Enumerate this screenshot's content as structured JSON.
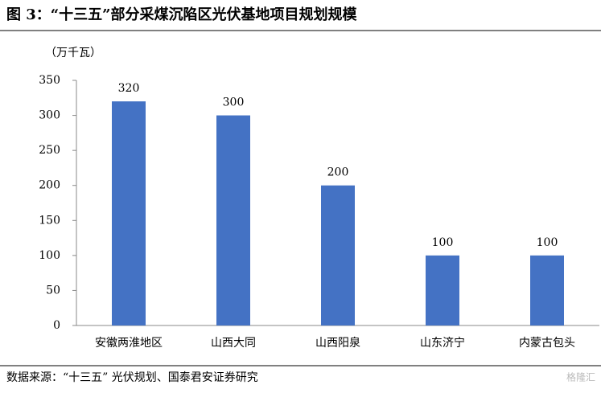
{
  "chart_data": {
    "type": "bar",
    "title": "图 3：“十三五”部分采煤沉陷区光伏基地项目规划规模",
    "unit_label": "（万千瓦）",
    "source": "数据来源：“十三五” 光伏规划、国泰君安证券研究",
    "watermark": "格隆汇",
    "categories": [
      "安徽两淮地区",
      "山西大同",
      "山西阳泉",
      "山东济宁",
      "内蒙古包头"
    ],
    "values": [
      320,
      300,
      200,
      100,
      100
    ],
    "color": "#4472c4",
    "ylim": [
      0,
      350
    ],
    "yticks": [
      0,
      50,
      100,
      150,
      200,
      250,
      300,
      350
    ],
    "grid": false
  }
}
